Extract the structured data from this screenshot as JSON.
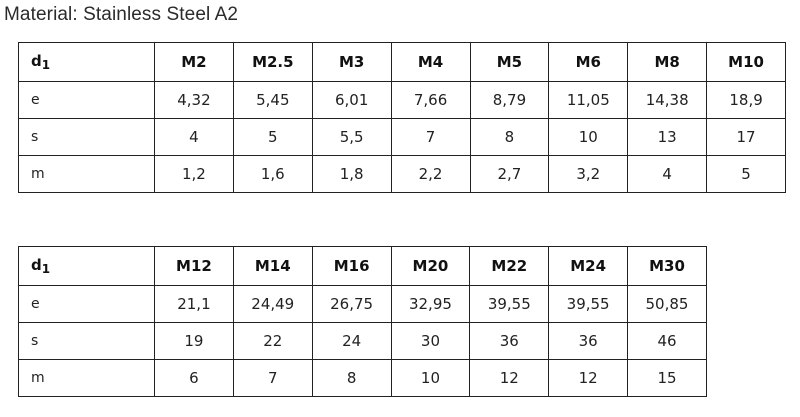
{
  "title": "Material: Stainless Steel A2",
  "tables": [
    {
      "header_label_main": "d",
      "header_label_sub": "1",
      "columns": [
        "M2",
        "M2.5",
        "M3",
        "M4",
        "M5",
        "M6",
        "M8",
        "M10"
      ],
      "rows": [
        {
          "label": "e",
          "values": [
            "4,32",
            "5,45",
            "6,01",
            "7,66",
            "8,79",
            "11,05",
            "14,38",
            "18,9"
          ]
        },
        {
          "label": "s",
          "values": [
            "4",
            "5",
            "5,5",
            "7",
            "8",
            "10",
            "13",
            "17"
          ]
        },
        {
          "label": "m",
          "values": [
            "1,2",
            "1,6",
            "1,8",
            "2,2",
            "2,7",
            "3,2",
            "4",
            "5"
          ]
        }
      ]
    },
    {
      "header_label_main": "d",
      "header_label_sub": "1",
      "columns": [
        "M12",
        "M14",
        "M16",
        "M20",
        "M22",
        "M24",
        "M30"
      ],
      "rows": [
        {
          "label": "e",
          "values": [
            "21,1",
            "24,49",
            "26,75",
            "32,95",
            "39,55",
            "39,55",
            "50,85"
          ]
        },
        {
          "label": "s",
          "values": [
            "19",
            "22",
            "24",
            "30",
            "36",
            "36",
            "46"
          ]
        },
        {
          "label": "m",
          "values": [
            "6",
            "7",
            "8",
            "10",
            "12",
            "12",
            "15"
          ]
        }
      ]
    }
  ]
}
